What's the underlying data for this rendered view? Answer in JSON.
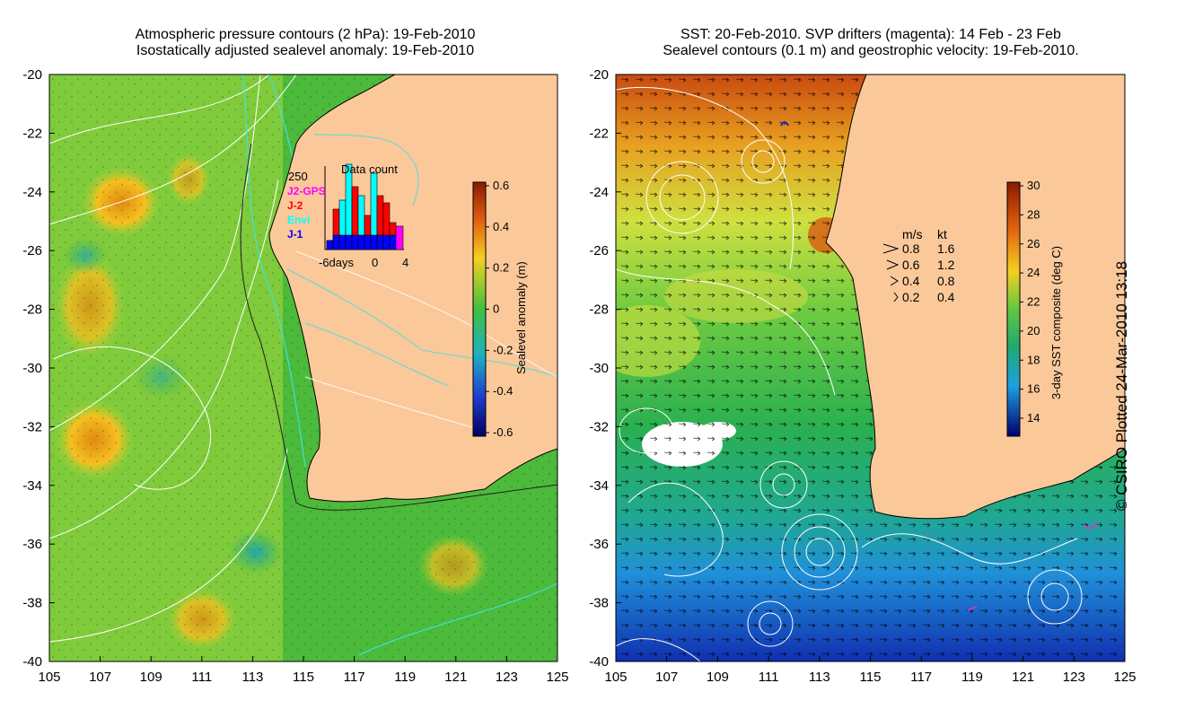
{
  "left_panel": {
    "title_line1": "Atmospheric pressure contours (2 hPa): 19-Feb-2010",
    "title_line2": "Isostatically adjusted sealevel anomaly: 19-Feb-2010",
    "colorbar_label": "Sealevel anomaly (m)",
    "colorbar_ticks": [
      "0.6",
      "0.4",
      "0.2",
      "0",
      "-0.2",
      "-0.4",
      "-0.6"
    ],
    "inset": {
      "title": "Data count",
      "y_label": "250",
      "series": [
        "J2-GPS",
        "J-2",
        "Envi",
        "J-1"
      ],
      "series_colors": [
        "#ff00ff",
        "#ff0000",
        "#00ffff",
        "#0000ff"
      ],
      "x_labels": [
        "-6days",
        "0",
        "4"
      ]
    }
  },
  "right_panel": {
    "title_line1": "SST: 20-Feb-2010. SVP drifters (magenta): 14 Feb - 23 Feb",
    "title_line2": "Sealevel contours (0.1 m) and geostrophic velocity: 19-Feb-2010.",
    "colorbar_label": "3-day SST composite (deg C)",
    "colorbar_ticks": [
      "30",
      "28",
      "26",
      "24",
      "22",
      "20",
      "18",
      "16",
      "14"
    ],
    "velocity_legend": {
      "header_ms": "m/s",
      "header_kt": "kt",
      "rows": [
        {
          "ms": "0.8",
          "kt": "1.6"
        },
        {
          "ms": "0.6",
          "kt": "1.2"
        },
        {
          "ms": "0.4",
          "kt": "0.8"
        },
        {
          "ms": "0.2",
          "kt": "0.4"
        }
      ]
    }
  },
  "axes": {
    "lat_labels": [
      "-20",
      "-22",
      "-24",
      "-26",
      "-28",
      "-30",
      "-32",
      "-34",
      "-36",
      "-38",
      "-40"
    ],
    "lon_labels": [
      "105",
      "107",
      "109",
      "111",
      "113",
      "115",
      "117",
      "119",
      "121",
      "123",
      "125"
    ]
  },
  "credit": "© CSIRO Plotted 24-Mar-2010 13:18",
  "colors": {
    "land": "#fbc89a",
    "ocean_mid": "#3fbf3f",
    "contour": "#ffffff",
    "coast_contour": "#40e0e0"
  }
}
